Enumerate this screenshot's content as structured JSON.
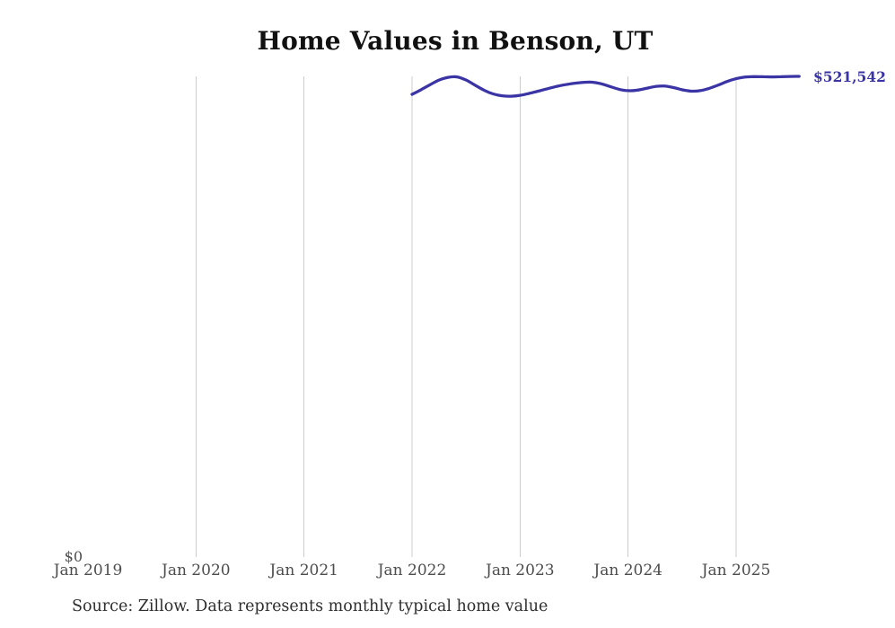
{
  "chart_data": {
    "type": "line",
    "title": "Home Values in Benson, UT",
    "source": "Source: Zillow. Data represents monthly typical home value",
    "xlabel": "",
    "ylabel": "",
    "legend": false,
    "grid": "vertical",
    "grid_color": "#cdcdcd",
    "ylim": [
      0,
      521542
    ],
    "xlim_months": [
      "2019-01",
      "2025-08"
    ],
    "x_ticks": [
      {
        "label": "Jan 2019",
        "month": "2019-01",
        "gridline": false
      },
      {
        "label": "Jan 2020",
        "month": "2020-01",
        "gridline": true
      },
      {
        "label": "Jan 2021",
        "month": "2021-01",
        "gridline": true
      },
      {
        "label": "Jan 2022",
        "month": "2022-01",
        "gridline": true
      },
      {
        "label": "Jan 2023",
        "month": "2023-01",
        "gridline": true
      },
      {
        "label": "Jan 2024",
        "month": "2024-01",
        "gridline": true
      },
      {
        "label": "Jan 2025",
        "month": "2025-01",
        "gridline": true
      }
    ],
    "y_ticks": [
      {
        "label": "$0",
        "value": 0
      }
    ],
    "series": [
      {
        "name": "Monthly typical home value",
        "color": "#3a34a5",
        "end_label": "$521,542",
        "x": [
          "2022-01",
          "2022-02",
          "2022-03",
          "2022-04",
          "2022-05",
          "2022-06",
          "2022-07",
          "2022-08",
          "2022-09",
          "2022-10",
          "2022-11",
          "2022-12",
          "2023-01",
          "2023-02",
          "2023-03",
          "2023-04",
          "2023-05",
          "2023-06",
          "2023-07",
          "2023-08",
          "2023-09",
          "2023-10",
          "2023-11",
          "2023-12",
          "2024-01",
          "2024-02",
          "2024-03",
          "2024-04",
          "2024-05",
          "2024-06",
          "2024-07",
          "2024-08",
          "2024-09",
          "2024-10",
          "2024-11",
          "2024-12",
          "2025-01",
          "2025-02",
          "2025-03",
          "2025-04",
          "2025-05",
          "2025-06",
          "2025-07",
          "2025-08"
        ],
        "values": [
          502000,
          507000,
          512500,
          517500,
          520500,
          521000,
          517500,
          512000,
          506500,
          502500,
          500500,
          500000,
          501000,
          503000,
          505500,
          508000,
          510500,
          512500,
          514000,
          515000,
          515200,
          513500,
          510500,
          507500,
          506000,
          506500,
          508500,
          510500,
          511000,
          509500,
          507000,
          505500,
          506000,
          508500,
          512000,
          516000,
          519000,
          520800,
          521300,
          521200,
          521000,
          521200,
          521400,
          521542
        ]
      }
    ]
  }
}
